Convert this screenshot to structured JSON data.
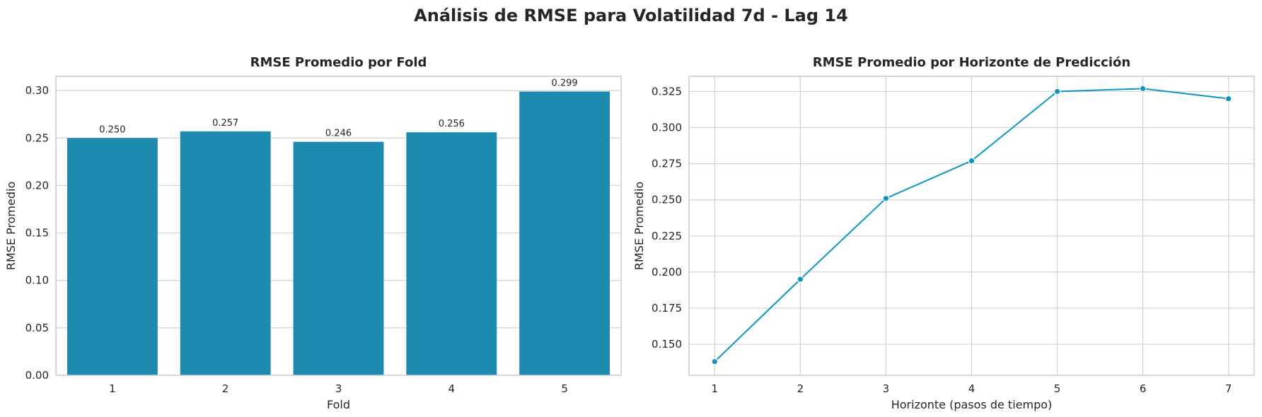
{
  "figure_title": "Análisis de RMSE para Volatilidad 7d - Lag 14",
  "accent_colors": {
    "bar": "#1d8aaf",
    "line": "#0a97c3",
    "grid": "#d3d3d3",
    "frame": "#cccccc"
  },
  "chart_data": [
    {
      "type": "bar",
      "title": "RMSE Promedio por Fold",
      "xlabel": "Fold",
      "ylabel": "RMSE Promedio",
      "categories": [
        "1",
        "2",
        "3",
        "4",
        "5"
      ],
      "values": [
        0.25,
        0.257,
        0.246,
        0.256,
        0.299
      ],
      "data_labels": [
        "0.250",
        "0.257",
        "0.246",
        "0.256",
        "0.299"
      ],
      "ylim": [
        0,
        0.315
      ],
      "yticks": [
        0.0,
        0.05,
        0.1,
        0.15,
        0.2,
        0.25,
        0.3
      ],
      "ytick_labels": [
        "0.00",
        "0.05",
        "0.10",
        "0.15",
        "0.20",
        "0.25",
        "0.30"
      ],
      "grid": "horizontal"
    },
    {
      "type": "line",
      "title": "RMSE Promedio por Horizonte de Predicción",
      "xlabel": "Horizonte (pasos de tiempo)",
      "ylabel": "RMSE Promedio",
      "x": [
        1,
        2,
        3,
        4,
        5,
        6,
        7
      ],
      "values": [
        0.138,
        0.195,
        0.251,
        0.277,
        0.325,
        0.327,
        0.32
      ],
      "xlim": [
        0.7,
        7.3
      ],
      "ylim": [
        0.1285,
        0.3355
      ],
      "xtick_labels": [
        "1",
        "2",
        "3",
        "4",
        "5",
        "6",
        "7"
      ],
      "yticks": [
        0.15,
        0.175,
        0.2,
        0.225,
        0.25,
        0.275,
        0.3,
        0.325
      ],
      "ytick_labels": [
        "0.150",
        "0.175",
        "0.200",
        "0.225",
        "0.250",
        "0.275",
        "0.300",
        "0.325"
      ],
      "grid": "both",
      "marker": "circle"
    }
  ]
}
